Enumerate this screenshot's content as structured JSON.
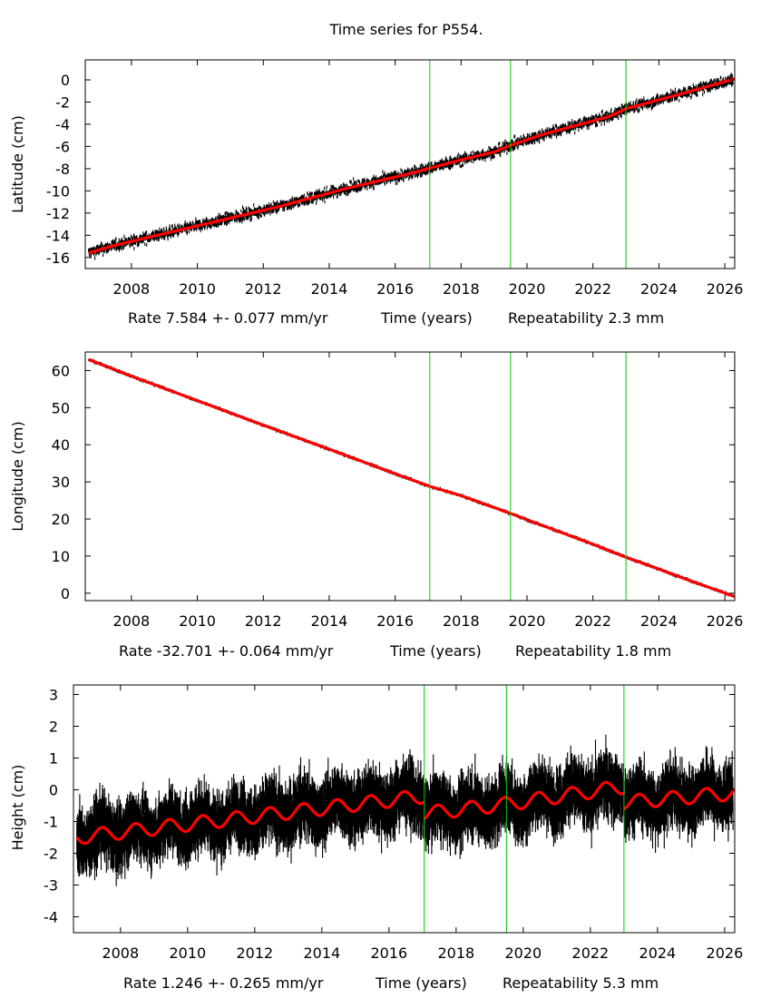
{
  "chart_title": "Time series for P554.",
  "colors": {
    "observations": "#000000",
    "model": "#ff0000",
    "events": "#00cc00"
  },
  "chart_data": [
    {
      "type": "scatter",
      "title": "Time series for P554.",
      "ylabel": "Latitude (cm)",
      "xlabel_rate": "Rate 7.584 +- 0.077 mm/yr",
      "xlabel_time": "Time (years)",
      "xlabel_repeat": "Repeatability 2.3 mm",
      "xlim": [
        2006.6,
        2026.3
      ],
      "ylim": [
        -17.0,
        1.8
      ],
      "xticks": [
        2008,
        2010,
        2012,
        2014,
        2016,
        2018,
        2020,
        2022,
        2024,
        2026
      ],
      "yticks": [
        0,
        -2,
        -4,
        -6,
        -8,
        -10,
        -12,
        -14,
        -16
      ],
      "events": [
        2017.05,
        2019.5,
        2023.0
      ],
      "series": [
        {
          "name": "model",
          "x": [
            2006.7,
            2007.5,
            2008.5,
            2009.5,
            2010.5,
            2011.5,
            2012.5,
            2013.5,
            2014.5,
            2015.5,
            2016.5,
            2017.0,
            2018.0,
            2019.0,
            2019.5,
            2020.5,
            2021.5,
            2022.5,
            2023.0,
            2024.0,
            2025.0,
            2026.3
          ],
          "values": [
            -15.6,
            -14.9,
            -14.2,
            -13.5,
            -12.8,
            -12.1,
            -11.4,
            -10.6,
            -9.8,
            -9.1,
            -8.4,
            -8.0,
            -7.2,
            -6.5,
            -5.9,
            -4.9,
            -4.1,
            -3.3,
            -2.6,
            -1.8,
            -1.0,
            0.1
          ]
        }
      ],
      "observation_noise_cm": 0.35
    },
    {
      "type": "scatter",
      "ylabel": "Longitude (cm)",
      "xlabel_rate": "Rate -32.701 +- 0.064 mm/yr",
      "xlabel_time": "Time (years)",
      "xlabel_repeat": "Repeatability 1.8 mm",
      "xlim": [
        2006.6,
        2026.3
      ],
      "ylim": [
        -2.0,
        65.0
      ],
      "xticks": [
        2008,
        2010,
        2012,
        2014,
        2016,
        2018,
        2020,
        2022,
        2024,
        2026
      ],
      "yticks": [
        60,
        50,
        40,
        30,
        20,
        10,
        0
      ],
      "events": [
        2017.05,
        2019.5,
        2023.0
      ],
      "series": [
        {
          "name": "model",
          "x": [
            2006.7,
            2008.0,
            2010.0,
            2012.0,
            2014.0,
            2016.0,
            2017.05,
            2018.0,
            2019.5,
            2020.0,
            2022.0,
            2023.0,
            2024.0,
            2025.0,
            2026.3
          ],
          "values": [
            63.0,
            58.5,
            51.9,
            45.3,
            38.8,
            32.2,
            28.8,
            26.3,
            21.5,
            19.8,
            13.2,
            9.7,
            6.5,
            3.2,
            -0.9
          ]
        }
      ],
      "observation_noise_cm": 0.3
    },
    {
      "type": "scatter",
      "ylabel": "Height (cm)",
      "xlabel_rate": "Rate 1.246 +- 0.265 mm/yr",
      "xlabel_time": "Time (years)",
      "xlabel_repeat": "Repeatability 5.3 mm",
      "xlim": [
        2006.6,
        2026.3
      ],
      "ylim": [
        -4.5,
        3.3
      ],
      "xticks": [
        2008,
        2010,
        2012,
        2014,
        2016,
        2018,
        2020,
        2022,
        2024,
        2026
      ],
      "yticks": [
        3,
        2,
        1,
        0,
        -1,
        -2,
        -3,
        -4
      ],
      "events": [
        2017.05,
        2019.5,
        2023.0
      ],
      "series": [
        {
          "name": "model",
          "seasonal_amplitude_cm": 0.22,
          "segments": [
            {
              "x": [
                2006.7,
                2017.05
              ],
              "trend": [
                -1.5,
                -0.2
              ]
            },
            {
              "x": [
                2017.05,
                2019.5
              ],
              "trend": [
                -0.75,
                -0.45
              ]
            },
            {
              "x": [
                2019.5,
                2023.0
              ],
              "trend": [
                -0.45,
                0.1
              ]
            },
            {
              "x": [
                2023.0,
                2026.3
              ],
              "trend": [
                -0.4,
                -0.1
              ]
            }
          ]
        }
      ],
      "observation_noise_cm": 0.5
    }
  ]
}
